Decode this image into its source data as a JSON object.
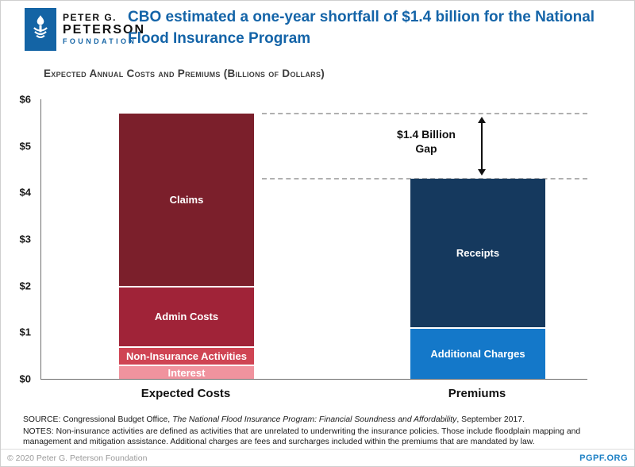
{
  "brand": {
    "logo_line1": "PETER G.",
    "logo_line2": "PETERSON",
    "logo_line3": "FOUNDATION"
  },
  "header": {
    "title": "CBO estimated a one-year shortfall of $1.4 billion for the National Flood Insurance Program"
  },
  "chart_data": {
    "type": "bar",
    "stacked": true,
    "title": "Expected Annual Costs and Premiums (Billions of Dollars)",
    "ylim": [
      0,
      6
    ],
    "yticks": [
      "$0",
      "$1",
      "$2",
      "$3",
      "$4",
      "$5",
      "$6"
    ],
    "categories": [
      "Expected Costs",
      "Premiums"
    ],
    "grid": false,
    "legend": "none",
    "bars": [
      {
        "category": "Expected Costs",
        "total": 5.7,
        "segments": [
          {
            "label": "Interest",
            "value": 0.3,
            "color": "#f0939e",
            "text_color": "#ffffff"
          },
          {
            "label": "Non-Insurance Activities",
            "value": 0.4,
            "color": "#cf4453",
            "text_color": "#ffffff"
          },
          {
            "label": "Admin Costs",
            "value": 1.3,
            "color": "#a02338",
            "text_color": "#ffffff"
          },
          {
            "label": "Claims",
            "value": 3.7,
            "color": "#7b1f2b",
            "text_color": "#ffffff"
          }
        ]
      },
      {
        "category": "Premiums",
        "total": 4.3,
        "segments": [
          {
            "label": "Additional Charges",
            "value": 1.1,
            "color": "#1478c9",
            "text_color": "#ffffff"
          },
          {
            "label": "Receipts",
            "value": 3.2,
            "color": "#15395e",
            "text_color": "#ffffff"
          }
        ]
      }
    ],
    "gap_annotation": {
      "line1": "$1.4 Billion",
      "line2": "Gap",
      "from_total": 5.7,
      "to_total": 4.3
    }
  },
  "footer": {
    "source_prefix": "SOURCE: Congressional Budget Office, ",
    "source_title_italic": "The National Flood Insurance Program: Financial Soundness and Affordability",
    "source_suffix": ", September 2017.",
    "notes": "NOTES: Non-insurance activities are defined as activities that are unrelated to underwriting the insurance policies. Those include floodplain mapping and management and mitigation assistance. Additional charges are fees and surcharges included within the premiums that are mandated by law.",
    "copyright": "© 2020 Peter G. Peterson Foundation",
    "site": "PGPF.ORG"
  }
}
